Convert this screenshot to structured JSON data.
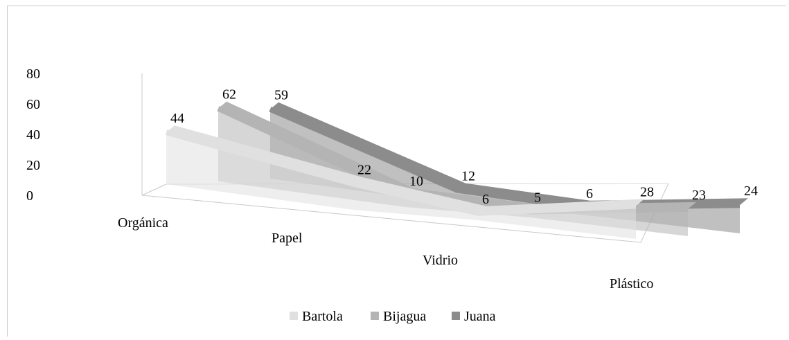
{
  "chart_data": {
    "type": "line",
    "style": "3d-line",
    "categories": [
      "Orgánica",
      "Papel",
      "Vidrio",
      "Plástico"
    ],
    "series": [
      {
        "name": "Bartola",
        "values": [
          44,
          22,
          6,
          28
        ],
        "color": "#e0e0e0"
      },
      {
        "name": "Bijagua",
        "values": [
          62,
          10,
          5,
          23
        ],
        "color": "#b4b4b4"
      },
      {
        "name": "Juana",
        "values": [
          59,
          12,
          6,
          24
        ],
        "color": "#8c8c8c"
      }
    ],
    "y_ticks": [
      "0",
      "20",
      "40",
      "60",
      "80"
    ],
    "ylim": [
      0,
      80
    ],
    "grid": false,
    "legend": "bottom",
    "title": "",
    "xlabel": "",
    "ylabel": ""
  }
}
